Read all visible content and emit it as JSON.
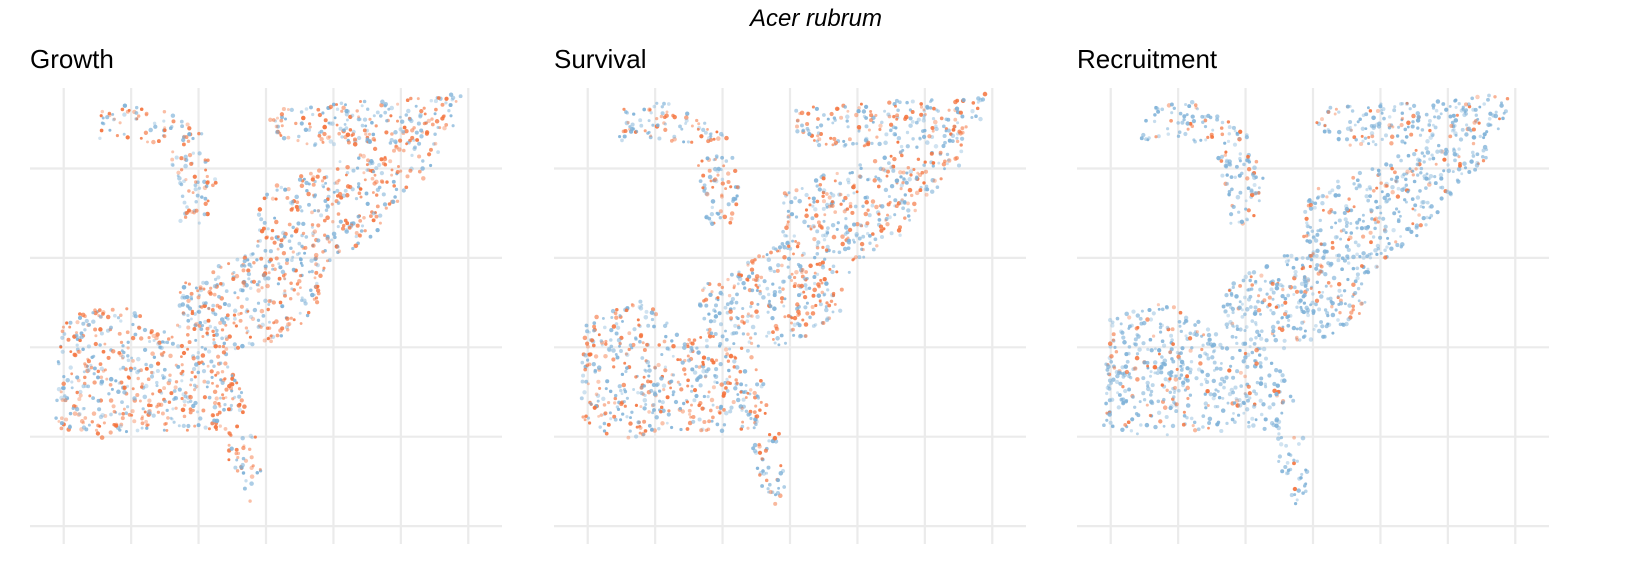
{
  "figure": {
    "title": "Acer rubrum"
  },
  "colors": {
    "grid": "#ebebeb",
    "positive": "#f4733d",
    "negative": "#7fb2d8"
  },
  "chart_data": [
    {
      "type": "scatter",
      "panel": "Growth",
      "title": "Growth",
      "xlabel": "",
      "ylabel": "",
      "x_gridlines": [
        -95,
        -90,
        -85,
        -80,
        -75,
        -70,
        -65
      ],
      "y_gridlines": [
        25,
        30,
        35,
        40,
        45,
        50
      ],
      "xlim": [
        -97.5,
        -62.5
      ],
      "ylim": [
        24,
        49.5
      ],
      "legend": "none",
      "series": [
        {
          "name": "positive",
          "share": 0.52
        },
        {
          "name": "negative",
          "share": 0.48
        }
      ]
    },
    {
      "type": "scatter",
      "panel": "Survival",
      "title": "Survival",
      "xlabel": "",
      "ylabel": "",
      "x_gridlines": [
        -95,
        -90,
        -85,
        -80,
        -75,
        -70,
        -65
      ],
      "y_gridlines": [
        25,
        30,
        35,
        40,
        45,
        50
      ],
      "xlim": [
        -97.5,
        -62.5
      ],
      "ylim": [
        24,
        49.5
      ],
      "legend": "none",
      "series": [
        {
          "name": "positive",
          "share": 0.45
        },
        {
          "name": "negative",
          "share": 0.55
        }
      ]
    },
    {
      "type": "scatter",
      "panel": "Recruitment",
      "title": "Recruitment",
      "xlabel": "",
      "ylabel": "",
      "x_gridlines": [
        -95,
        -90,
        -85,
        -80,
        -75,
        -70,
        -65
      ],
      "y_gridlines": [
        25,
        30,
        35,
        40,
        45,
        50
      ],
      "xlim": [
        -97.5,
        -62.5
      ],
      "ylim": [
        24,
        49.5
      ],
      "legend": "none",
      "series": [
        {
          "name": "positive",
          "share": 0.2
        },
        {
          "name": "negative",
          "share": 0.8
        }
      ]
    }
  ]
}
